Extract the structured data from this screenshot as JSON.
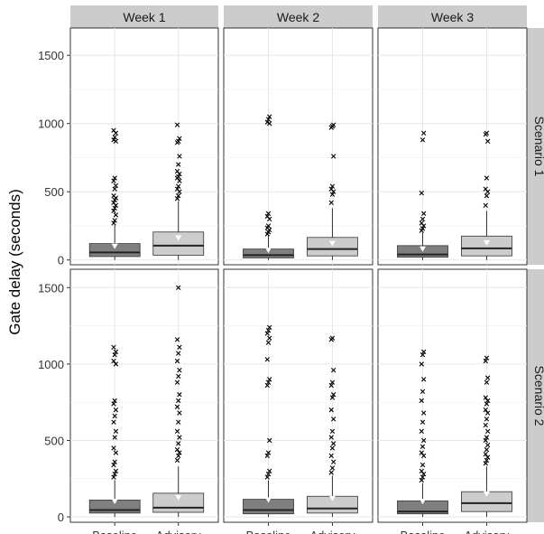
{
  "chart_data": {
    "type": "box",
    "ylabel": "Gate delay (seconds)",
    "xlabel": "",
    "categories": [
      "Baseline",
      "Advisory"
    ],
    "columns": [
      "Week 1",
      "Week 2",
      "Week 3"
    ],
    "rows": [
      "Scenario 1",
      "Scenario 2"
    ],
    "grid": true,
    "legend": "none",
    "panels": [
      {
        "row": "Scenario 1",
        "column": "Week 1",
        "ylim": [
          -35,
          1700
        ],
        "yticks": [
          0,
          500,
          1000,
          1500
        ],
        "boxes": [
          {
            "category": "Baseline",
            "q1": 25,
            "median": 55,
            "q3": 120,
            "whisker_low": 0,
            "whisker_high": 255,
            "mean": 100,
            "outliers": [
              270,
              290,
              330,
              360,
              380,
              400,
              420,
              440,
              455,
              470,
              520,
              545,
              580,
              600,
              870,
              880,
              900,
              930,
              950
            ]
          },
          {
            "category": "Advisory",
            "q1": 35,
            "median": 105,
            "q3": 205,
            "whisker_low": 0,
            "whisker_high": 430,
            "mean": 160,
            "outliers": [
              450,
              470,
              500,
              520,
              540,
              580,
              600,
              610,
              630,
              650,
              700,
              760,
              860,
              870,
              890,
              990
            ]
          }
        ]
      },
      {
        "row": "Scenario 1",
        "column": "Week 2",
        "ylim": [
          -35,
          1700
        ],
        "yticks": [
          0,
          500,
          1000,
          1500
        ],
        "boxes": [
          {
            "category": "Baseline",
            "q1": 15,
            "median": 35,
            "q3": 80,
            "whisker_low": 0,
            "whisker_high": 180,
            "mean": 70,
            "outliers": [
              190,
              205,
              220,
              235,
              250,
              300,
              320,
              340,
              1000,
              1010,
              1030,
              1050
            ]
          },
          {
            "category": "Advisory",
            "q1": 30,
            "median": 80,
            "q3": 165,
            "whisker_low": 0,
            "whisker_high": 380,
            "mean": 120,
            "outliers": [
              420,
              480,
              500,
              520,
              540,
              760,
              970,
              980,
              990
            ]
          }
        ]
      },
      {
        "row": "Scenario 1",
        "column": "Week 3",
        "ylim": [
          -35,
          1700
        ],
        "yticks": [
          0,
          500,
          1000,
          1500
        ],
        "boxes": [
          {
            "category": "Baseline",
            "q1": 20,
            "median": 40,
            "q3": 105,
            "whisker_low": 0,
            "whisker_high": 200,
            "mean": 80,
            "outliers": [
              215,
              230,
              250,
              270,
              300,
              340,
              490,
              880,
              930
            ]
          },
          {
            "category": "Advisory",
            "q1": 30,
            "median": 85,
            "q3": 175,
            "whisker_low": 0,
            "whisker_high": 360,
            "mean": 125,
            "outliers": [
              400,
              470,
              500,
              520,
              600,
              870,
              920,
              930
            ]
          }
        ]
      },
      {
        "row": "Scenario 2",
        "column": "Week 1",
        "ylim": [
          -35,
          1620
        ],
        "yticks": [
          0,
          500,
          1000,
          1500
        ],
        "boxes": [
          {
            "category": "Baseline",
            "q1": 25,
            "median": 45,
            "q3": 110,
            "whisker_low": 0,
            "whisker_high": 240,
            "mean": 100,
            "outliers": [
              260,
              280,
              300,
              340,
              360,
              420,
              450,
              520,
              560,
              620,
              660,
              700,
              740,
              760,
              1000,
              1020,
              1060,
              1080,
              1110
            ]
          },
          {
            "category": "Advisory",
            "q1": 30,
            "median": 60,
            "q3": 155,
            "whisker_low": 0,
            "whisker_high": 330,
            "mean": 125,
            "outliers": [
              370,
              400,
              420,
              440,
              480,
              520,
              560,
              620,
              680,
              720,
              760,
              800,
              880,
              920,
              960,
              1020,
              1070,
              1110,
              1160,
              1500
            ]
          }
        ]
      },
      {
        "row": "Scenario 2",
        "column": "Week 2",
        "ylim": [
          -35,
          1620
        ],
        "yticks": [
          0,
          500,
          1000,
          1500
        ],
        "boxes": [
          {
            "category": "Baseline",
            "q1": 20,
            "median": 45,
            "q3": 115,
            "whisker_low": 0,
            "whisker_high": 240,
            "mean": 110,
            "outliers": [
              260,
              280,
              300,
              400,
              420,
              500,
              860,
              880,
              900,
              1030,
              1140,
              1170,
              1200,
              1220,
              1240
            ]
          },
          {
            "category": "Advisory",
            "q1": 25,
            "median": 55,
            "q3": 135,
            "whisker_low": 0,
            "whisker_high": 270,
            "mean": 120,
            "outliers": [
              290,
              320,
              360,
              400,
              450,
              480,
              520,
              560,
              640,
              700,
              780,
              800,
              860,
              880,
              960,
              1160,
              1170
            ]
          }
        ]
      },
      {
        "row": "Scenario 2",
        "column": "Week 3",
        "ylim": [
          -35,
          1620
        ],
        "yticks": [
          0,
          500,
          1000,
          1500
        ],
        "boxes": [
          {
            "category": "Baseline",
            "q1": 20,
            "median": 35,
            "q3": 105,
            "whisker_low": 0,
            "whisker_high": 220,
            "mean": 100,
            "outliers": [
              240,
              260,
              280,
              300,
              340,
              400,
              420,
              460,
              500,
              560,
              620,
              680,
              760,
              820,
              900,
              1000,
              1060,
              1080
            ]
          },
          {
            "category": "Advisory",
            "q1": 35,
            "median": 90,
            "q3": 165,
            "whisker_low": 0,
            "whisker_high": 330,
            "mean": 150,
            "outliers": [
              350,
              370,
              390,
              410,
              440,
              470,
              500,
              520,
              560,
              600,
              640,
              680,
              700,
              740,
              760,
              780,
              880,
              910,
              1020,
              1040
            ]
          }
        ]
      }
    ]
  },
  "colors": {
    "baseline_fill": "#7f7f7f",
    "advisory_fill": "#cccccc",
    "strip_fill": "#cccccc",
    "grid": "#e6e6e6",
    "outlier": "#000000",
    "mean_marker": "#ffffff"
  }
}
